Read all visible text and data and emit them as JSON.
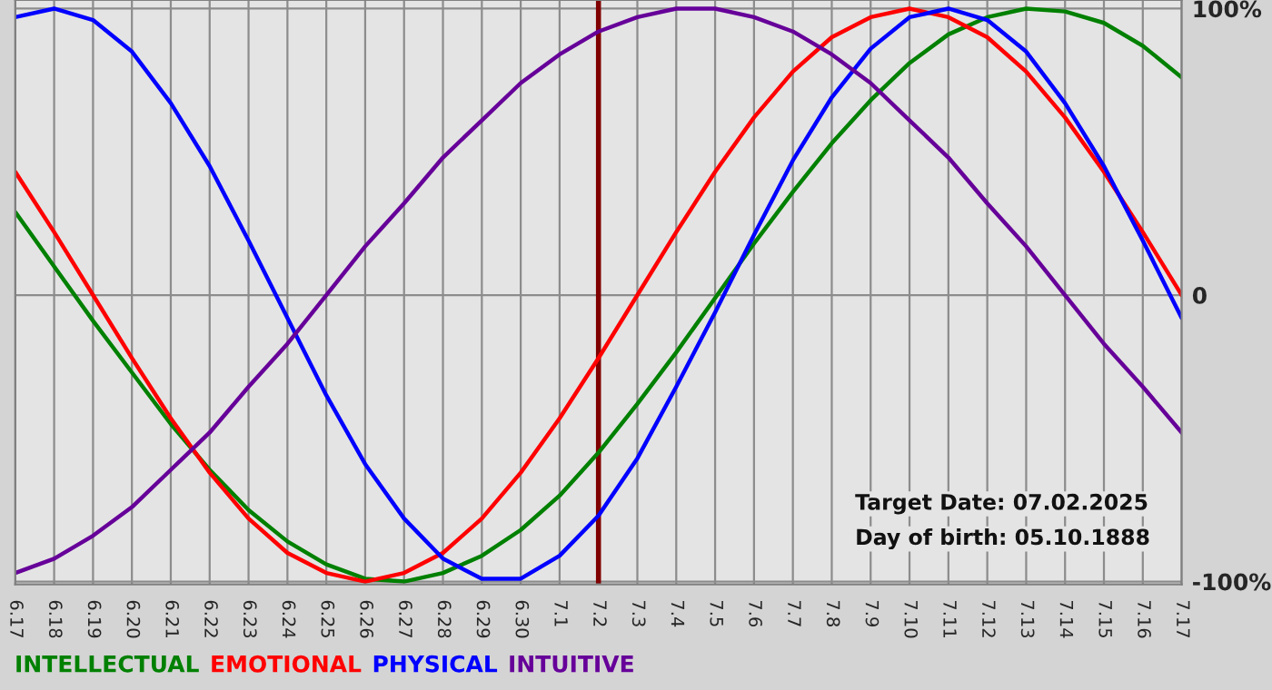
{
  "chart_data": {
    "type": "line",
    "categories": [
      "6.17",
      "6.18",
      "6.19",
      "6.20",
      "6.21",
      "6.22",
      "6.23",
      "6.24",
      "6.25",
      "6.26",
      "6.27",
      "6.28",
      "6.29",
      "6.30",
      "7.1",
      "7.2",
      "7.3",
      "7.4",
      "7.5",
      "7.6",
      "7.7",
      "7.8",
      "7.9",
      "7.10",
      "7.11",
      "7.12",
      "7.13",
      "7.14",
      "7.15",
      "7.16",
      "7.17"
    ],
    "series": [
      {
        "name": "INTELLECTUAL",
        "color": "#008000",
        "values": [
          29,
          10,
          -9,
          -27,
          -45,
          -61,
          -75,
          -86,
          -94,
          -99,
          -100,
          -97,
          -91,
          -82,
          -70,
          -55,
          -38,
          -20,
          -1,
          18,
          36,
          53,
          68,
          81,
          91,
          97,
          100,
          99,
          95,
          87,
          76
        ]
      },
      {
        "name": "EMOTIONAL",
        "color": "#ff0000",
        "values": [
          43,
          22,
          0,
          -22,
          -43,
          -62,
          -78,
          -90,
          -97,
          -100,
          -97,
          -90,
          -78,
          -62,
          -43,
          -22,
          0,
          22,
          43,
          62,
          78,
          90,
          97,
          100,
          97,
          90,
          78,
          62,
          43,
          22,
          0
        ]
      },
      {
        "name": "PHYSICAL",
        "color": "#0000ff",
        "values": [
          97,
          100,
          96,
          85,
          67,
          45,
          19,
          -8,
          -35,
          -59,
          -78,
          -92,
          -99,
          -99,
          -91,
          -77,
          -57,
          -32,
          -6,
          21,
          47,
          69,
          86,
          97,
          100,
          96,
          85,
          67,
          45,
          19,
          -8
        ]
      },
      {
        "name": "INTUITIVE",
        "color": "#660099",
        "values": [
          -97,
          -92,
          -84,
          -74,
          -61,
          -48,
          -32,
          -17,
          0,
          17,
          32,
          48,
          61,
          74,
          84,
          92,
          97,
          100,
          100,
          97,
          92,
          84,
          74,
          61,
          48,
          32,
          17,
          0,
          -17,
          -32,
          -48
        ]
      }
    ],
    "ylim": [
      -101,
      103
    ],
    "yticks": [
      {
        "value": 100,
        "label": "100%"
      },
      0,
      {
        "value": -100,
        "label": "-100%"
      }
    ],
    "grid": true,
    "legend": "bottom",
    "marker": "none",
    "line_style": "solid",
    "ref_lines": [
      {
        "axis": "x",
        "value": "7.2",
        "color": "#800000"
      }
    ],
    "annotations": [
      "Target Date: 07.02.2025",
      "Day of birth: 05.10.1888"
    ]
  }
}
